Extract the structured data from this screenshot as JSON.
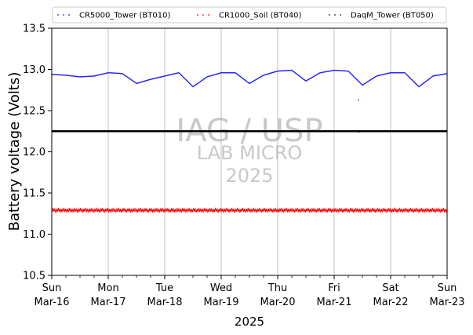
{
  "chart_data": {
    "type": "scatter",
    "title": "",
    "xlabel": "2025",
    "ylabel": "Battery voltage (Volts)",
    "ylim": [
      10.5,
      13.5
    ],
    "xlim_days": [
      0,
      7
    ],
    "x_ticks": [
      {
        "day": "Sun",
        "date": "Mar-16",
        "pos": 0
      },
      {
        "day": "Mon",
        "date": "Mar-17",
        "pos": 1
      },
      {
        "day": "Tue",
        "date": "Mar-18",
        "pos": 2
      },
      {
        "day": "Wed",
        "date": "Mar-19",
        "pos": 3
      },
      {
        "day": "Thu",
        "date": "Mar-20",
        "pos": 4
      },
      {
        "day": "Fri",
        "date": "Mar-21",
        "pos": 5
      },
      {
        "day": "Sat",
        "date": "Mar-22",
        "pos": 6
      },
      {
        "day": "Sun",
        "date": "Mar-23",
        "pos": 7
      }
    ],
    "y_ticks": [
      "10.5",
      "11.0",
      "11.5",
      "12.0",
      "12.5",
      "13.0",
      "13.5"
    ],
    "grid": "vertical",
    "legend_position": "top-center",
    "watermark": [
      "IAG / USP",
      "LAB MICRO",
      "2025"
    ],
    "reference_line": {
      "y": 12.25,
      "color": "#000000"
    },
    "series": [
      {
        "name": "CR5000_Tower (BT010)",
        "color": "#1f1fff",
        "x": [
          0.0,
          0.25,
          0.5,
          0.75,
          1.0,
          1.25,
          1.5,
          1.75,
          2.0,
          2.25,
          2.5,
          2.75,
          3.0,
          3.25,
          3.5,
          3.75,
          4.0,
          4.25,
          4.5,
          4.75,
          5.0,
          5.25,
          5.5,
          5.75,
          6.0,
          6.25,
          6.5,
          6.75,
          7.0
        ],
        "values": [
          12.94,
          12.93,
          12.91,
          12.92,
          12.96,
          12.95,
          12.83,
          12.88,
          12.92,
          12.96,
          12.79,
          12.91,
          12.96,
          12.96,
          12.83,
          12.93,
          12.98,
          12.99,
          12.86,
          12.96,
          12.99,
          12.98,
          12.81,
          12.92,
          12.96,
          12.96,
          12.79,
          12.92,
          12.95
        ],
        "outliers": [
          {
            "x": 5.43,
            "y": 12.63
          }
        ]
      },
      {
        "name": "CR1000_Soil (BT040)",
        "color": "#ff0000",
        "x": [
          0,
          7
        ],
        "values": [
          11.29,
          11.29
        ]
      },
      {
        "name": "DaqM_Tower (BT050)",
        "color": "#1a1a4d",
        "x": [
          5.43
        ],
        "values": [
          12.24
        ]
      }
    ]
  }
}
